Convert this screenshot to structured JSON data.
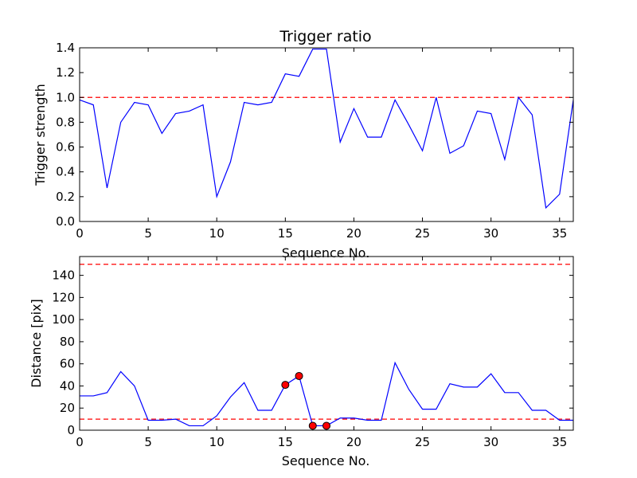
{
  "chart_data": [
    {
      "type": "line",
      "title": "Trigger ratio",
      "xlabel": "Sequence No.",
      "ylabel": "Trigger strength",
      "xlim": [
        0,
        36
      ],
      "ylim": [
        0,
        1.4
      ],
      "xticks": [
        0,
        5,
        10,
        15,
        20,
        25,
        30,
        35
      ],
      "yticks": [
        0.0,
        0.2,
        0.4,
        0.6,
        0.8,
        1.0,
        1.2,
        1.4
      ],
      "ytick_labels": [
        "0.0",
        "0.2",
        "0.4",
        "0.6",
        "0.8",
        "1.0",
        "1.2",
        "1.4"
      ],
      "line_color": "#0000ff",
      "series": [
        {
          "x": [
            0,
            1,
            2,
            3,
            4,
            5,
            6,
            7,
            8,
            9,
            10,
            11,
            12,
            13,
            14,
            15,
            16,
            17,
            18,
            19,
            20,
            21,
            22,
            23,
            24,
            25,
            26,
            27,
            28,
            29,
            30,
            31,
            32,
            33,
            34,
            35,
            36
          ],
          "values": [
            0.98,
            0.94,
            0.27,
            0.8,
            0.96,
            0.94,
            0.71,
            0.87,
            0.89,
            0.94,
            0.2,
            0.48,
            0.96,
            0.94,
            0.96,
            1.19,
            1.17,
            1.39,
            1.39,
            0.64,
            0.91,
            0.68,
            0.68,
            0.98,
            0.78,
            0.57,
            1.0,
            0.55,
            0.61,
            0.89,
            0.87,
            0.5,
            1.0,
            0.86,
            0.11,
            0.22,
            0.98
          ]
        }
      ],
      "reference_lines": [
        {
          "y": 1.0,
          "color": "#ff0000",
          "style": "dashed"
        }
      ]
    },
    {
      "type": "line",
      "title": "",
      "xlabel": "Sequence No.",
      "ylabel": "Distance [pix]",
      "xlim": [
        0,
        36
      ],
      "ylim": [
        0,
        157
      ],
      "xticks": [
        0,
        5,
        10,
        15,
        20,
        25,
        30,
        35
      ],
      "yticks": [
        0,
        20,
        40,
        60,
        80,
        100,
        120,
        140
      ],
      "ytick_labels": [
        "0",
        "20",
        "40",
        "60",
        "80",
        "100",
        "120",
        "140"
      ],
      "line_color": "#0000ff",
      "series": [
        {
          "x": [
            0,
            1,
            2,
            3,
            4,
            5,
            6,
            7,
            8,
            9,
            10,
            11,
            12,
            13,
            14,
            15,
            16,
            17,
            18,
            19,
            20,
            21,
            22,
            23,
            24,
            25,
            26,
            27,
            28,
            29,
            30,
            31,
            32,
            33,
            34,
            35,
            36
          ],
          "values": [
            31,
            31,
            34,
            53,
            40,
            9,
            9,
            10,
            4,
            4,
            13,
            30,
            43,
            18,
            18,
            41,
            49,
            4,
            4,
            11,
            11,
            9,
            9,
            61,
            37,
            19,
            19,
            42,
            39,
            39,
            51,
            34,
            34,
            18,
            18,
            9,
            9
          ]
        }
      ],
      "highlighted_points": {
        "color": "#ff0000",
        "x": [
          15,
          16,
          17,
          18
        ],
        "y": [
          41,
          49,
          4,
          4
        ]
      },
      "reference_lines": [
        {
          "y": 150,
          "color": "#ff0000",
          "style": "dashed"
        },
        {
          "y": 10,
          "color": "#ff0000",
          "style": "dashed"
        }
      ]
    }
  ]
}
